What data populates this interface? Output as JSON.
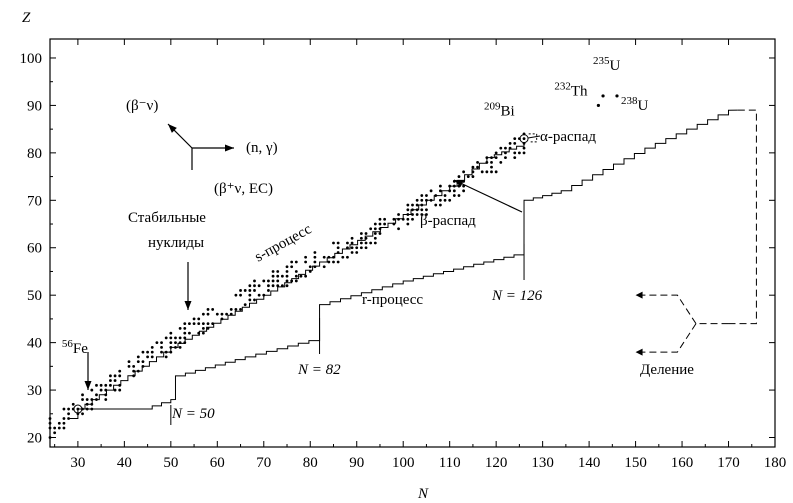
{
  "chart_data": {
    "type": "scatter",
    "xlabel": "N",
    "ylabel": "Z",
    "xlim": [
      24,
      180
    ],
    "ylim": [
      18,
      104
    ],
    "xticks": [
      30,
      40,
      50,
      60,
      70,
      80,
      90,
      100,
      110,
      120,
      130,
      140,
      150,
      160,
      170,
      180
    ],
    "yticks": [
      20,
      30,
      40,
      50,
      60,
      70,
      80,
      90,
      100
    ],
    "grid": false,
    "stable_band": {
      "center_line": [
        [
          24,
          22
        ],
        [
          30,
          26
        ],
        [
          50,
          40
        ],
        [
          70,
          52
        ],
        [
          90,
          61
        ],
        [
          110,
          72
        ],
        [
          126,
          82
        ]
      ],
      "half_width_z": 2.3
    },
    "s_process_path": [
      [
        28,
        24
      ],
      [
        30,
        26
      ],
      [
        50,
        39
      ],
      [
        70,
        50
      ],
      [
        82,
        57
      ],
      [
        100,
        67
      ],
      [
        110,
        73
      ],
      [
        118,
        79
      ],
      [
        126,
        82
      ]
    ],
    "r_process_path": [
      [
        30,
        26
      ],
      [
        44,
        26
      ],
      [
        50,
        28
      ],
      [
        51,
        28
      ],
      [
        51,
        33
      ],
      [
        66,
        37
      ],
      [
        82,
        41
      ],
      [
        82,
        48
      ],
      [
        100,
        53
      ],
      [
        126,
        59
      ],
      [
        126,
        70
      ],
      [
        134,
        72
      ],
      [
        152,
        81
      ],
      [
        170,
        89
      ],
      [
        172,
        89
      ]
    ],
    "fission_path": {
      "top": [
        [
          172,
          89
        ],
        [
          176,
          89
        ],
        [
          176,
          44
        ],
        [
          170,
          44
        ]
      ],
      "fork_origin": [
        163,
        44
      ],
      "fork_targets": [
        [
          150,
          50
        ],
        [
          150,
          38
        ]
      ],
      "junction": [
        [
          163,
          44
        ],
        [
          170,
          44
        ]
      ]
    },
    "special_nuclides": [
      {
        "label": "56",
        "name": "Fe",
        "n": 30,
        "z": 26
      },
      {
        "label": "209",
        "name": "Bi",
        "n": 126,
        "z": 83
      },
      {
        "label": "232",
        "name": "Th",
        "n": 142,
        "z": 90
      },
      {
        "label": "235",
        "name": "U",
        "n": 143,
        "z": 92
      },
      {
        "label": "238",
        "name": "U",
        "n": 146,
        "z": 92
      }
    ],
    "annotations": {
      "legend_beta_minus": "(β⁻ν)",
      "legend_ng": "(n, γ)",
      "legend_beta_plus": "(β⁺ν, EC)",
      "stable_1": "Стабильные",
      "stable_2": "нуклиды",
      "s_process": "s-процесс",
      "r_process": "r-процесс",
      "alpha_decay": "α-распад",
      "beta_decay": "β-распад",
      "fission": "Деление",
      "n50": "N = 50",
      "n82": "N = 82",
      "n126": "N = 126"
    }
  }
}
